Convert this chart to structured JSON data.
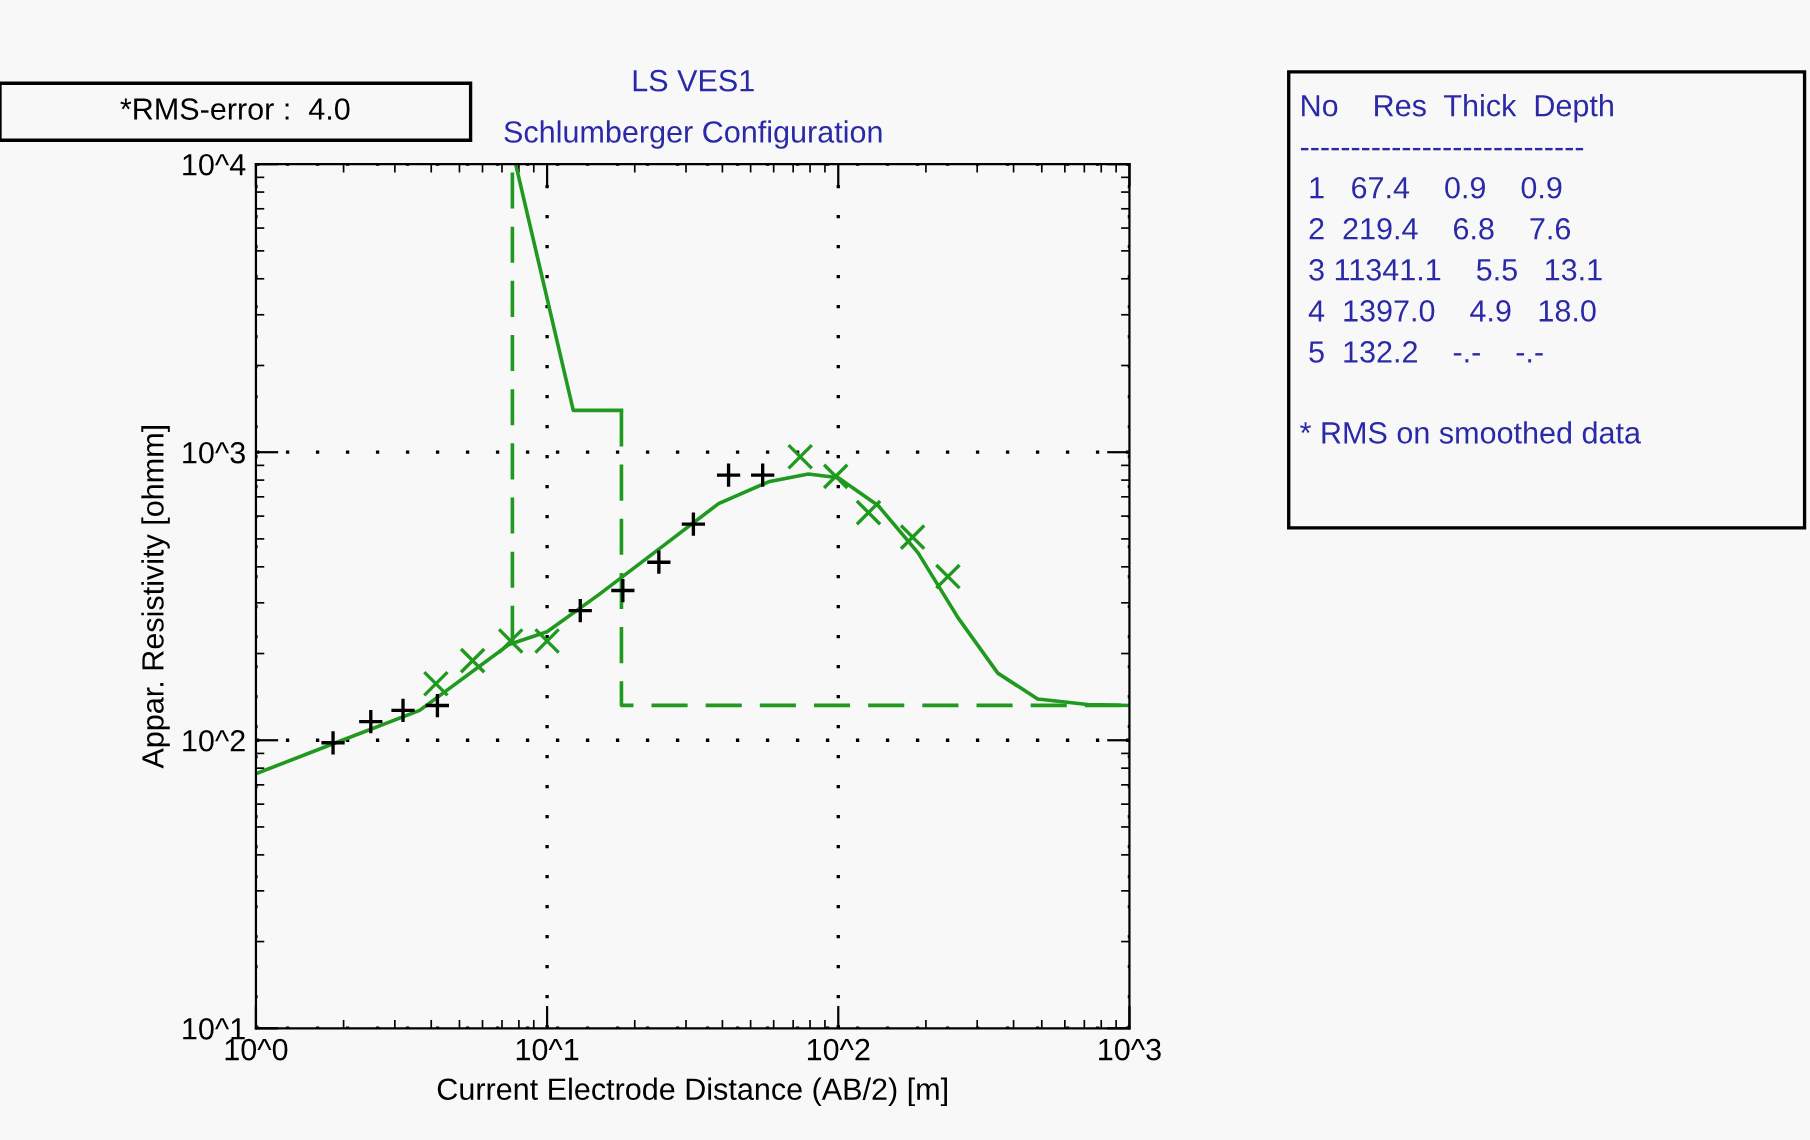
{
  "chart_data": {
    "type": "line",
    "title": "LS VES1",
    "subtitle": "Schlumberger Configuration",
    "xlabel": "Current Electrode Distance (AB/2) [m]",
    "ylabel": "Appar. Resistivity [ohmm]",
    "log": "xy",
    "xlim": [
      1,
      1000
    ],
    "ylim": [
      10,
      10000
    ],
    "xticks": [
      {
        "value": 1,
        "label": "10^0"
      },
      {
        "value": 10,
        "label": "10^1"
      },
      {
        "value": 100,
        "label": "10^2"
      },
      {
        "value": 1000,
        "label": "10^3"
      }
    ],
    "yticks": [
      {
        "value": 10,
        "label": "10^1"
      },
      {
        "value": 100,
        "label": "10^2"
      },
      {
        "value": 1000,
        "label": "10^3"
      },
      {
        "value": 10000,
        "label": "10^4"
      }
    ],
    "grid": true,
    "series": [
      {
        "type": "scatter",
        "marker": "plus",
        "color": "#000000",
        "x": [
          1.84,
          2.48,
          3.2,
          4.2,
          13.0,
          18.2,
          24.2,
          31.8,
          42,
          55
        ],
        "values": [
          98,
          116,
          127,
          132,
          282,
          331,
          415,
          563,
          832,
          832
        ]
      },
      {
        "type": "scatter",
        "marker": "cross",
        "color": "#1f9a1f",
        "x": [
          4.15,
          5.55,
          7.5,
          10,
          74,
          98,
          127,
          180,
          238
        ],
        "values": [
          157,
          189,
          221,
          221,
          964,
          824,
          617,
          507,
          370
        ]
      },
      {
        "line_style": "solid",
        "color": "#1f9a1f",
        "x": [
          1,
          1.88,
          3.65,
          7.4,
          10,
          15.1,
          24.2,
          38.8,
          57.6,
          79,
          100,
          137,
          188,
          258,
          353,
          484,
          718,
          1000
        ],
        "values": [
          76.5,
          98,
          127,
          215,
          238,
          321,
          461,
          663,
          789,
          840,
          815,
          653,
          447,
          266,
          171,
          139,
          133,
          132
        ]
      },
      {
        "type": "line",
        "line_style": "dashed",
        "color": "#1f9a1f",
        "x": [
          7.6,
          7.6
        ],
        "values": [
          219.4,
          10000
        ]
      },
      {
        "type": "line",
        "line_style": "solid",
        "color": "#1f9a1f",
        "x": [
          7.8,
          12.3,
          18.0
        ],
        "values": [
          10000,
          1397,
          1397
        ]
      },
      {
        "type": "line",
        "line_style": "dashed",
        "color": "#1f9a1f",
        "x": [
          18.0,
          18.0,
          1000
        ],
        "values": [
          1397,
          132.2,
          132.2
        ]
      }
    ],
    "annotations": [
      "*RMS-error :  4.0",
      "No    Res  Thick  Depth",
      "----------------------------",
      " 1   67.4    0.9    0.9",
      " 2  219.4    6.8    7.6",
      " 3 11341.1    5.5   13.1",
      " 4  1397.0    4.9   18.0",
      " 5  132.2    -.-    -.-",
      "* RMS on smoothed data"
    ]
  }
}
